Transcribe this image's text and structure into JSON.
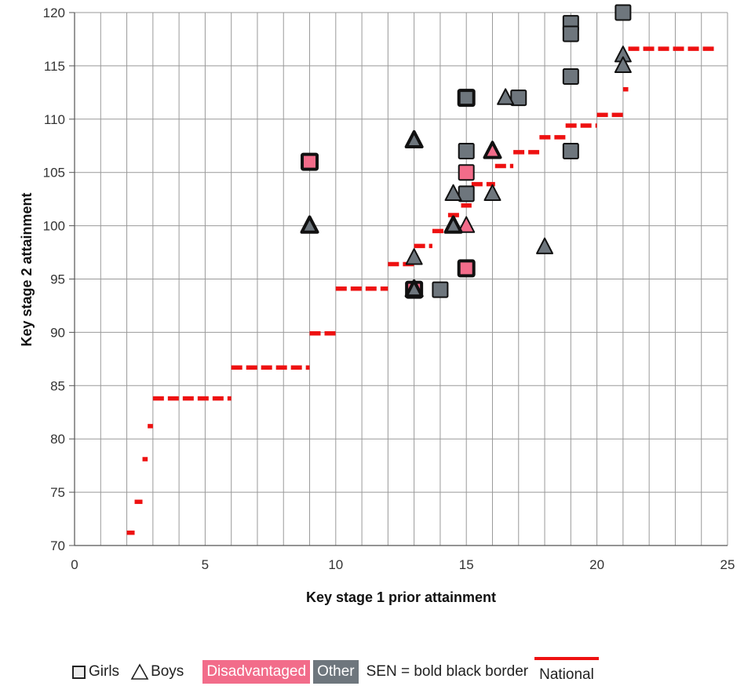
{
  "chart_data": {
    "type": "scatter",
    "xlabel": "Key stage 1 prior attainment",
    "ylabel": "Key stage 2 attainment",
    "xlim": [
      0,
      25
    ],
    "ylim": [
      70,
      120
    ],
    "x_ticks": [
      "0",
      "5",
      "10",
      "15",
      "20",
      "25"
    ],
    "y_ticks": [
      "70",
      "75",
      "80",
      "85",
      "90",
      "95",
      "100",
      "105",
      "110",
      "115",
      "120"
    ],
    "grid": true,
    "colors": {
      "disadvantaged": "#f26c8a",
      "other": "#6e767d",
      "national": "#ee1111",
      "grid": "#999999"
    },
    "pupils": [
      {
        "x": 9,
        "y": 106,
        "gender": "Girls",
        "group": "Disadvantaged",
        "sen": true
      },
      {
        "x": 13,
        "y": 94,
        "gender": "Girls",
        "group": "Disadvantaged",
        "sen": true
      },
      {
        "x": 15,
        "y": 105,
        "gender": "Girls",
        "group": "Disadvantaged",
        "sen": false
      },
      {
        "x": 15,
        "y": 96,
        "gender": "Girls",
        "group": "Disadvantaged",
        "sen": true
      },
      {
        "x": 14,
        "y": 94,
        "gender": "Girls",
        "group": "Other",
        "sen": false
      },
      {
        "x": 15,
        "y": 112,
        "gender": "Girls",
        "group": "Other",
        "sen": true
      },
      {
        "x": 15,
        "y": 107,
        "gender": "Girls",
        "group": "Other",
        "sen": false
      },
      {
        "x": 15,
        "y": 103,
        "gender": "Girls",
        "group": "Other",
        "sen": false
      },
      {
        "x": 17,
        "y": 112,
        "gender": "Girls",
        "group": "Other",
        "sen": false
      },
      {
        "x": 19,
        "y": 119,
        "gender": "Girls",
        "group": "Other",
        "sen": false
      },
      {
        "x": 19,
        "y": 118,
        "gender": "Girls",
        "group": "Other",
        "sen": false
      },
      {
        "x": 19,
        "y": 114,
        "gender": "Girls",
        "group": "Other",
        "sen": false
      },
      {
        "x": 19,
        "y": 107,
        "gender": "Girls",
        "group": "Other",
        "sen": false
      },
      {
        "x": 21,
        "y": 120,
        "gender": "Girls",
        "group": "Other",
        "sen": false
      },
      {
        "x": 15,
        "y": 100,
        "gender": "Boys",
        "group": "Disadvantaged",
        "sen": false
      },
      {
        "x": 16,
        "y": 107,
        "gender": "Boys",
        "group": "Disadvantaged",
        "sen": true
      },
      {
        "x": 9,
        "y": 100,
        "gender": "Boys",
        "group": "Other",
        "sen": true
      },
      {
        "x": 13,
        "y": 108,
        "gender": "Boys",
        "group": "Other",
        "sen": true
      },
      {
        "x": 13,
        "y": 97,
        "gender": "Boys",
        "group": "Other",
        "sen": false
      },
      {
        "x": 13,
        "y": 94,
        "gender": "Boys",
        "group": "Other",
        "sen": true
      },
      {
        "x": 14.5,
        "y": 103,
        "gender": "Boys",
        "group": "Other",
        "sen": false
      },
      {
        "x": 14.5,
        "y": 100,
        "gender": "Boys",
        "group": "Other",
        "sen": true
      },
      {
        "x": 16,
        "y": 103,
        "gender": "Boys",
        "group": "Other",
        "sen": false
      },
      {
        "x": 16.5,
        "y": 112,
        "gender": "Boys",
        "group": "Other",
        "sen": false
      },
      {
        "x": 18,
        "y": 98,
        "gender": "Boys",
        "group": "Other",
        "sen": false
      },
      {
        "x": 21,
        "y": 116,
        "gender": "Boys",
        "group": "Other",
        "sen": false
      },
      {
        "x": 21,
        "y": 115,
        "gender": "Boys",
        "group": "Other",
        "sen": false
      }
    ],
    "national": [
      {
        "x0": 2.0,
        "x1": 2.3,
        "y": 71.2
      },
      {
        "x0": 2.3,
        "x1": 2.6,
        "y": 74.1
      },
      {
        "x0": 2.6,
        "x1": 2.8,
        "y": 78.1
      },
      {
        "x0": 2.8,
        "x1": 3.0,
        "y": 81.2
      },
      {
        "x0": 3.0,
        "x1": 6.0,
        "y": 83.8
      },
      {
        "x0": 6.0,
        "x1": 9.0,
        "y": 86.7
      },
      {
        "x0": 9.0,
        "x1": 10.0,
        "y": 89.9
      },
      {
        "x0": 10.0,
        "x1": 12.0,
        "y": 94.1
      },
      {
        "x0": 12.0,
        "x1": 13.0,
        "y": 96.4
      },
      {
        "x0": 13.0,
        "x1": 13.7,
        "y": 98.1
      },
      {
        "x0": 13.7,
        "x1": 14.3,
        "y": 99.5
      },
      {
        "x0": 14.3,
        "x1": 14.8,
        "y": 101.0
      },
      {
        "x0": 14.8,
        "x1": 15.2,
        "y": 101.9
      },
      {
        "x0": 15.2,
        "x1": 16.1,
        "y": 103.9
      },
      {
        "x0": 16.1,
        "x1": 16.8,
        "y": 105.6
      },
      {
        "x0": 16.8,
        "x1": 17.8,
        "y": 106.9
      },
      {
        "x0": 17.8,
        "x1": 18.8,
        "y": 108.3
      },
      {
        "x0": 18.8,
        "x1": 20.0,
        "y": 109.4
      },
      {
        "x0": 20.0,
        "x1": 21.0,
        "y": 110.4
      },
      {
        "x0": 21.0,
        "x1": 21.2,
        "y": 112.8
      },
      {
        "x0": 21.2,
        "x1": 24.6,
        "y": 116.6
      }
    ]
  },
  "legend": {
    "girls": "Girls",
    "boys": "Boys",
    "disadvantaged": "Disadvantaged",
    "other": "Other",
    "sen": "SEN = bold black border",
    "national": "National"
  }
}
